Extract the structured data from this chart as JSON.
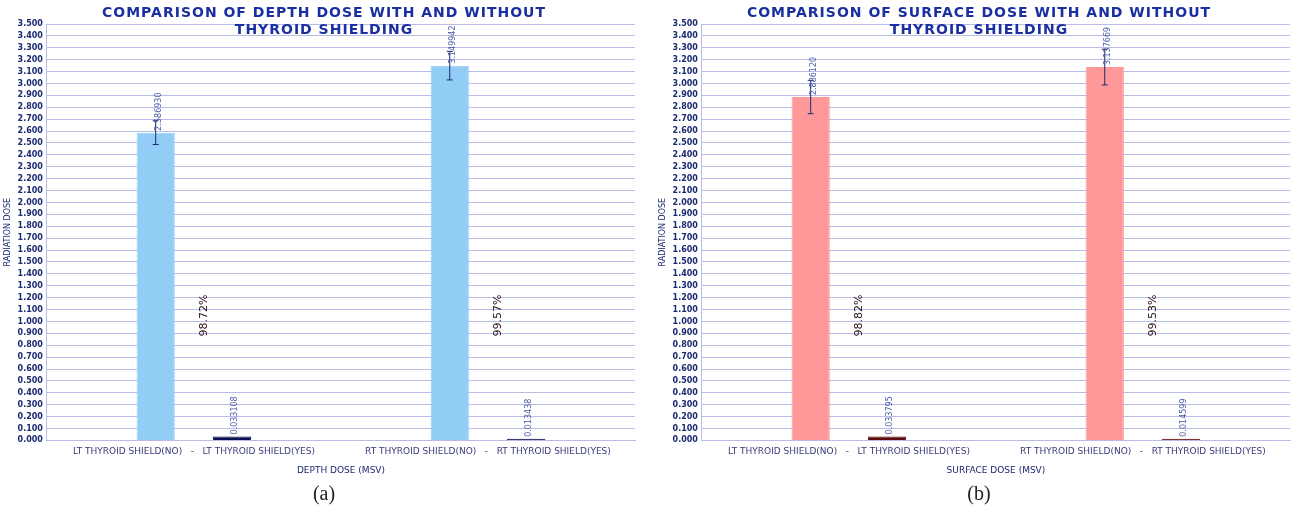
{
  "chart_data": [
    {
      "type": "bar",
      "title": "COMPARISON OF DEPTH DOSE WITH AND WITHOUT THYROID SHIELDING",
      "xlabel": "DEPTH DOSE (MSV)",
      "ylabel": "RADIATION DOSE",
      "categories": [
        "LT THYROID SHIELD(NO)   -   LT THYROID SHIELD(YES)",
        "RT THYROID SHIELD(NO)   -   RT THYROID SHIELD(YES)"
      ],
      "series": [
        {
          "color": "#92cdf5",
          "values": [
            2.58693,
            3.149942
          ],
          "errors": [
            0.1,
            0.12
          ],
          "value_labels": [
            "2.586930",
            "3.149942"
          ]
        },
        {
          "color": "#0b1050",
          "values": [
            0.033108,
            0.013438
          ],
          "value_labels": [
            "0.033108",
            "0.013438"
          ]
        }
      ],
      "ylim": [
        0,
        3.5
      ],
      "yticks": [
        {
          "value": 0,
          "label": "0.000"
        },
        {
          "value": 0.1,
          "label": "0.100"
        },
        {
          "value": 0.2,
          "label": "0.200"
        },
        {
          "value": 0.3,
          "label": "0.300"
        },
        {
          "value": 0.4,
          "label": "0.400"
        },
        {
          "value": 0.5,
          "label": "0.500"
        },
        {
          "value": 0.6,
          "label": "0.600"
        },
        {
          "value": 0.7,
          "label": "0.700"
        },
        {
          "value": 0.8,
          "label": "0.800"
        },
        {
          "value": 0.9,
          "label": "0.900"
        },
        {
          "value": 1,
          "label": "1.000"
        },
        {
          "value": 1.1,
          "label": "1.100"
        },
        {
          "value": 1.2,
          "label": "1.200"
        },
        {
          "value": 1.3,
          "label": "1.300"
        },
        {
          "value": 1.4,
          "label": "1.400"
        },
        {
          "value": 1.5,
          "label": "1.500"
        },
        {
          "value": 1.6,
          "label": "1.600"
        },
        {
          "value": 1.7,
          "label": "1.700"
        },
        {
          "value": 1.8,
          "label": "1.800"
        },
        {
          "value": 1.9,
          "label": "1.900"
        },
        {
          "value": 2,
          "label": "2.000"
        },
        {
          "value": 2.1,
          "label": "2.100"
        },
        {
          "value": 2.2,
          "label": "2.200"
        },
        {
          "value": 2.3,
          "label": "2.300"
        },
        {
          "value": 2.4,
          "label": "2.400"
        },
        {
          "value": 2.5,
          "label": "2.500"
        },
        {
          "value": 2.6,
          "label": "2.600"
        },
        {
          "value": 2.7,
          "label": "2.700"
        },
        {
          "value": 2.8,
          "label": "2.800"
        },
        {
          "value": 2.9,
          "label": "2.900"
        },
        {
          "value": 3,
          "label": "3.000"
        },
        {
          "value": 3.1,
          "label": "3.100"
        },
        {
          "value": 3.2,
          "label": "3.200"
        },
        {
          "value": 3.3,
          "label": "3.300"
        },
        {
          "value": 3.4,
          "label": "3.400"
        },
        {
          "value": 3.5,
          "label": "3.500"
        }
      ],
      "grid": "y",
      "legend": false,
      "annotations": [
        "98.72%",
        "99.57%",
        "(a)"
      ]
    },
    {
      "type": "bar",
      "title": "COMPARISON OF SURFACE DOSE WITH AND WITHOUT THYROID SHIELDING",
      "xlabel": "SURFACE DOSE (MSV)",
      "ylabel": "RADIATION DOSE",
      "categories": [
        "LT THYROID SHIELD(NO)   -   LT THYROID SHIELD(YES)",
        "RT THYROID SHIELD(NO)   -   RT THYROID SHIELD(YES)"
      ],
      "series": [
        {
          "color": "#ff9999",
          "values": [
            2.88612,
            3.137669
          ],
          "errors": [
            0.14,
            0.15
          ],
          "value_labels": [
            "2.886120",
            "3.137669"
          ]
        },
        {
          "color": "#5c0a0a",
          "values": [
            0.033795,
            0.014599
          ],
          "value_labels": [
            "0.033795",
            "0.014599"
          ]
        }
      ],
      "ylim": [
        0,
        3.5
      ],
      "yticks": [
        {
          "value": 0,
          "label": "0.000"
        },
        {
          "value": 0.1,
          "label": "0.100"
        },
        {
          "value": 0.2,
          "label": "0.200"
        },
        {
          "value": 0.3,
          "label": "0.300"
        },
        {
          "value": 0.4,
          "label": "0.400"
        },
        {
          "value": 0.5,
          "label": "0.500"
        },
        {
          "value": 0.6,
          "label": "0.600"
        },
        {
          "value": 0.7,
          "label": "0.700"
        },
        {
          "value": 0.8,
          "label": "0.800"
        },
        {
          "value": 0.9,
          "label": "0.900"
        },
        {
          "value": 1,
          "label": "1.000"
        },
        {
          "value": 1.1,
          "label": "1.100"
        },
        {
          "value": 1.2,
          "label": "1.200"
        },
        {
          "value": 1.3,
          "label": "1.300"
        },
        {
          "value": 1.4,
          "label": "1.400"
        },
        {
          "value": 1.5,
          "label": "1.500"
        },
        {
          "value": 1.6,
          "label": "1.600"
        },
        {
          "value": 1.7,
          "label": "1.700"
        },
        {
          "value": 1.8,
          "label": "1.800"
        },
        {
          "value": 1.9,
          "label": "1.900"
        },
        {
          "value": 2,
          "label": "2.000"
        },
        {
          "value": 2.1,
          "label": "2.100"
        },
        {
          "value": 2.2,
          "label": "2.200"
        },
        {
          "value": 2.3,
          "label": "2.300"
        },
        {
          "value": 2.4,
          "label": "2.400"
        },
        {
          "value": 2.5,
          "label": "2.500"
        },
        {
          "value": 2.6,
          "label": "2.600"
        },
        {
          "value": 2.7,
          "label": "2.700"
        },
        {
          "value": 2.8,
          "label": "2.800"
        },
        {
          "value": 2.9,
          "label": "2.900"
        },
        {
          "value": 3,
          "label": "3.000"
        },
        {
          "value": 3.1,
          "label": "3.100"
        },
        {
          "value": 3.2,
          "label": "3.200"
        },
        {
          "value": 3.3,
          "label": "3.300"
        },
        {
          "value": 3.4,
          "label": "3.400"
        },
        {
          "value": 3.5,
          "label": "3.500"
        }
      ],
      "grid": "y",
      "legend": false,
      "annotations": [
        "98.82%",
        "99.53%",
        "(b)"
      ]
    }
  ]
}
